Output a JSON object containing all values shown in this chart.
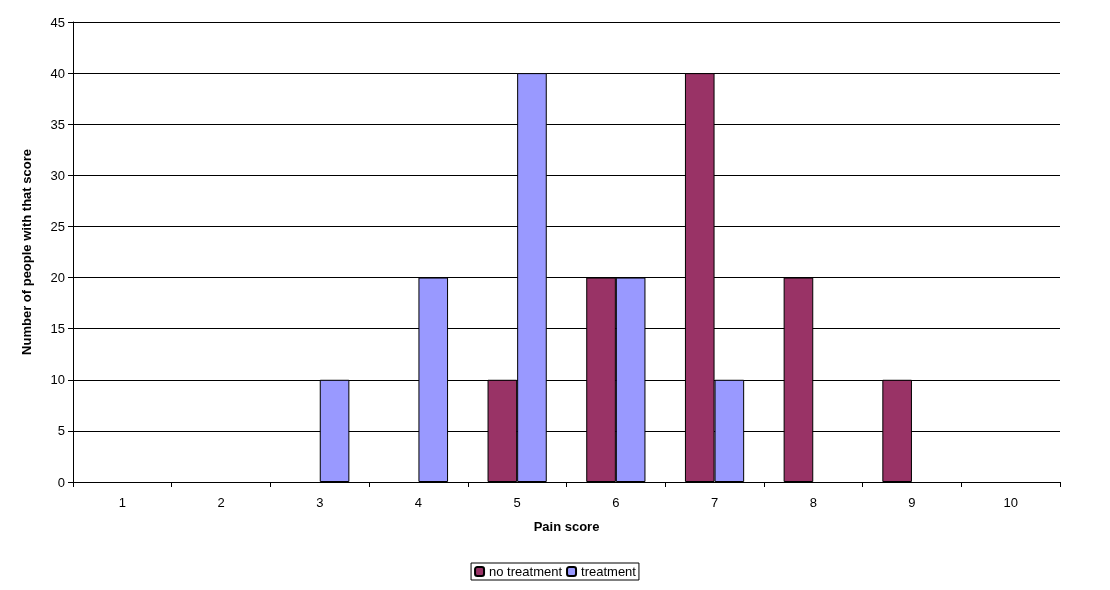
{
  "chart_data": {
    "type": "bar",
    "xlabel": "Pain score",
    "ylabel": "Number of people with that score",
    "categories": [
      "1",
      "2",
      "3",
      "4",
      "5",
      "6",
      "7",
      "8",
      "9",
      "10"
    ],
    "series": [
      {
        "name": "no treatment",
        "color": "#993366",
        "values": [
          0,
          0,
          0,
          0,
          10,
          20,
          40,
          20,
          10,
          0
        ]
      },
      {
        "name": "treatment",
        "color": "#9999ff",
        "values": [
          0,
          0,
          10,
          20,
          40,
          20,
          10,
          0,
          0,
          0
        ]
      }
    ],
    "ylim": [
      0,
      45
    ],
    "yticks": [
      0,
      5,
      10,
      15,
      20,
      25,
      30,
      35,
      40,
      45
    ],
    "grid": "y",
    "legend": "bottom"
  }
}
